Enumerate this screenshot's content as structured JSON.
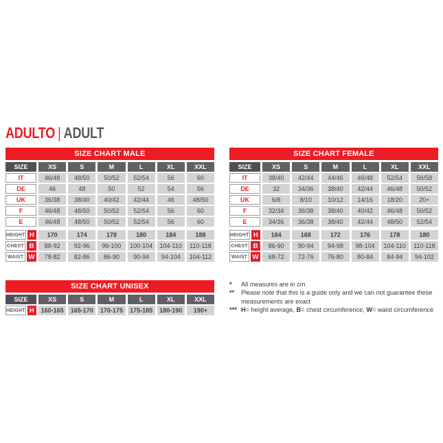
{
  "title": {
    "primary": "ADULTO",
    "separator": "|",
    "secondary": "ADULT"
  },
  "colors": {
    "accent_red": "#ED1C24",
    "banner_text": "#FFFFFF",
    "corner_header_bg": "#4F5053",
    "column_header_bg": "#606164",
    "cell_bg": "#D2D3D5",
    "cell_text": "#414042",
    "label_border": "#98999C",
    "title_secondary": "#58595B"
  },
  "tables": {
    "male": {
      "title": "SIZE CHART MALE",
      "corner_label": "SIZE",
      "columns": [
        "XS",
        "S",
        "M",
        "L",
        "XL",
        "XXL"
      ],
      "size_rows": [
        {
          "label": "IT",
          "values": [
            "46/48",
            "48/50",
            "50/52",
            "52/54",
            "56",
            "60"
          ]
        },
        {
          "label": "DE",
          "values": [
            "46",
            "48",
            "50",
            "52",
            "54",
            "56"
          ]
        },
        {
          "label": "UK",
          "values": [
            "36/38",
            "38/40",
            "40/42",
            "42/44",
            "46",
            "48/50"
          ]
        },
        {
          "label": "F",
          "values": [
            "46/48",
            "48/50",
            "50/52",
            "52/54",
            "56",
            "60"
          ]
        },
        {
          "label": "E",
          "values": [
            "46/48",
            "48/50",
            "50/52",
            "52/54",
            "56",
            "60"
          ]
        }
      ],
      "measure_rows": [
        {
          "label": "HEIGHT",
          "letter": "H",
          "values": [
            "170",
            "174",
            "178",
            "180",
            "184",
            "188"
          ]
        },
        {
          "label": "CHEST",
          "letter": "B",
          "values": [
            "88-92",
            "92-96",
            "96-100",
            "100-104",
            "104-110",
            "110-118"
          ]
        },
        {
          "label": "WAIST",
          "letter": "W",
          "values": [
            "78-82",
            "82-86",
            "86-90",
            "90-94",
            "94-104",
            "104-112"
          ]
        }
      ]
    },
    "female": {
      "title": "SIZE CHART FEMALE",
      "corner_label": "SIZE",
      "columns": [
        "XS",
        "S",
        "M",
        "L",
        "XL",
        "XXL"
      ],
      "size_rows": [
        {
          "label": "IT",
          "values": [
            "38/40",
            "42/44",
            "44/46",
            "46/48",
            "52/54",
            "56/58"
          ]
        },
        {
          "label": "DE",
          "values": [
            "32",
            "34/36",
            "38/40",
            "42/44",
            "46/48",
            "50/52"
          ]
        },
        {
          "label": "UK",
          "values": [
            "6/8",
            "8/10",
            "10/12",
            "14/16",
            "18/20",
            "20+"
          ]
        },
        {
          "label": "F",
          "values": [
            "32/34",
            "36/38",
            "38/40",
            "40/42",
            "46/48",
            "50/52"
          ]
        },
        {
          "label": "E",
          "values": [
            "34/36",
            "36/38",
            "38/40",
            "42/44",
            "48/50",
            "52/54"
          ]
        }
      ],
      "measure_rows": [
        {
          "label": "HEIGHT",
          "letter": "H",
          "values": [
            "164",
            "168",
            "172",
            "176",
            "178",
            "180"
          ]
        },
        {
          "label": "CHEST",
          "letter": "B",
          "values": [
            "86-90",
            "90-94",
            "94-98",
            "98-104",
            "104-110",
            "110-118"
          ]
        },
        {
          "label": "WAIST",
          "letter": "W",
          "values": [
            "68-72",
            "72-76",
            "76-80",
            "80-84",
            "84-94",
            "94-102"
          ]
        }
      ]
    },
    "unisex": {
      "title": "SIZE CHART UNISEX",
      "corner_label": "SIZE",
      "columns": [
        "XS",
        "S",
        "M",
        "L",
        "XL",
        "XXL"
      ],
      "measure_rows": [
        {
          "label": "HEIGHT",
          "letter": "H",
          "values": [
            "160-165",
            "165-170",
            "170-175",
            "175-185",
            "180-190",
            "190+"
          ]
        }
      ]
    }
  },
  "footnotes": {
    "note1": {
      "marker": "*",
      "text": "All measures are in cm"
    },
    "note2": {
      "marker": "**",
      "text": "Please note that this is a guide only and we can not guarantee these measurements are exact"
    },
    "note3": {
      "marker": "***",
      "h": "H",
      "after_h": "= height average, ",
      "b": "B",
      "after_b": "= chest circumference, ",
      "w": "W",
      "after_w": "= waist circumference"
    }
  }
}
